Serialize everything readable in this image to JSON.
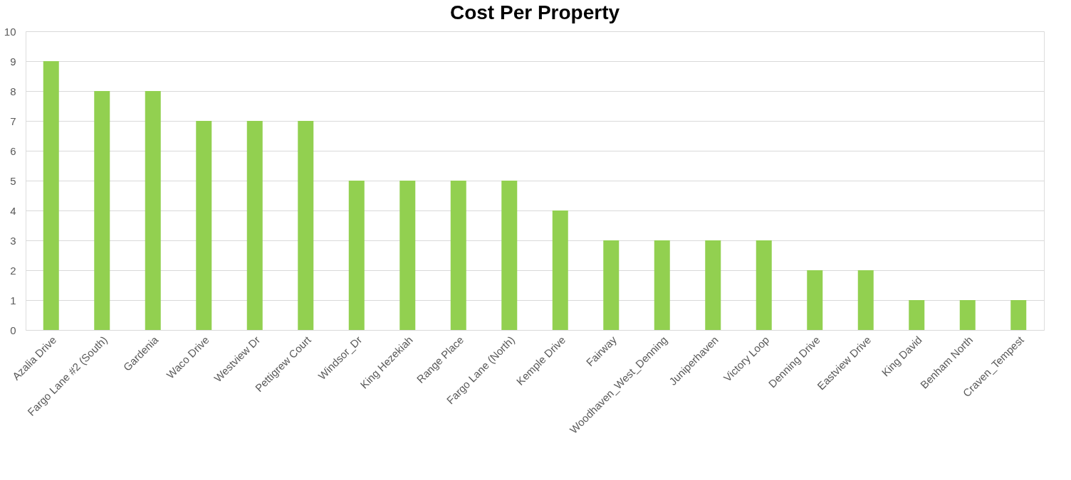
{
  "chart_data": {
    "type": "bar",
    "title": "Cost Per Property",
    "categories": [
      "Azalia Drive",
      "Fargo Lane #2 (South)",
      "Gardenia",
      "Waco Drive",
      "Westview Dr",
      "Pettigrew Court",
      "Windsor_Dr",
      "King Hezekiah",
      "Range Place",
      "Fargo Lane (North)",
      "Kemple Drive",
      "Fairway",
      "Woodhaven_West_Denning",
      "Juniperhaven",
      "Victory Loop",
      "Denning Drive",
      "Eastview Drive",
      "King David",
      "Benham North",
      "Craven_Tempest"
    ],
    "values": [
      9,
      8,
      8,
      7,
      7,
      7,
      5,
      5,
      5,
      5,
      4,
      3,
      3,
      3,
      3,
      2,
      2,
      1,
      1,
      1
    ],
    "color": "#92d050",
    "ylim": [
      0,
      10
    ],
    "yticks": [
      0,
      1,
      2,
      3,
      4,
      5,
      6,
      7,
      8,
      9,
      10
    ],
    "grid": "y"
  }
}
